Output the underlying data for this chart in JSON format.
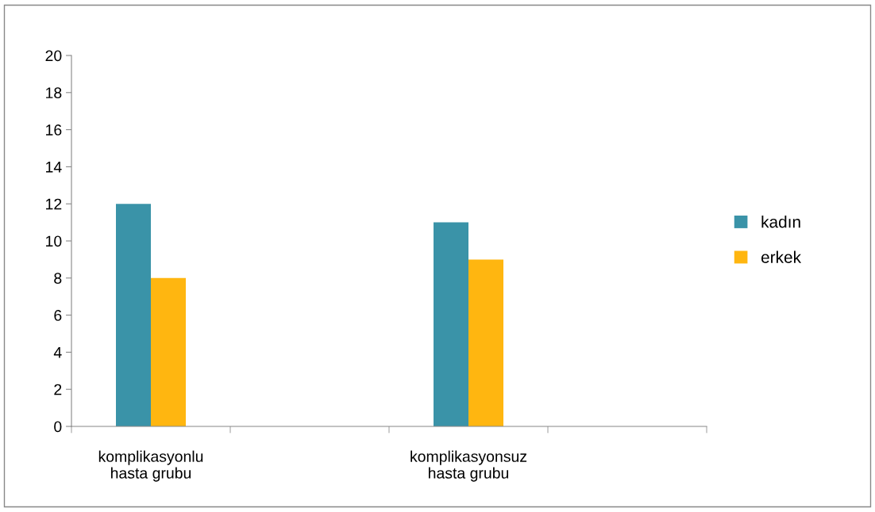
{
  "chart_data": {
    "type": "bar",
    "categories": [
      "komplikasyonlu\nhasta grubu",
      null,
      "komplikasyonsuz\nhasta grubu",
      null
    ],
    "series": [
      {
        "name": "kadın",
        "color": "#3a93a8",
        "values": [
          12,
          null,
          11,
          null
        ]
      },
      {
        "name": "erkek",
        "color": "#ffb610",
        "values": [
          8,
          null,
          9,
          null
        ]
      }
    ],
    "ylim": [
      0,
      20
    ],
    "yticks": [
      0,
      2,
      4,
      6,
      8,
      10,
      12,
      14,
      16,
      18,
      20
    ],
    "grid": false,
    "legend": "right"
  }
}
